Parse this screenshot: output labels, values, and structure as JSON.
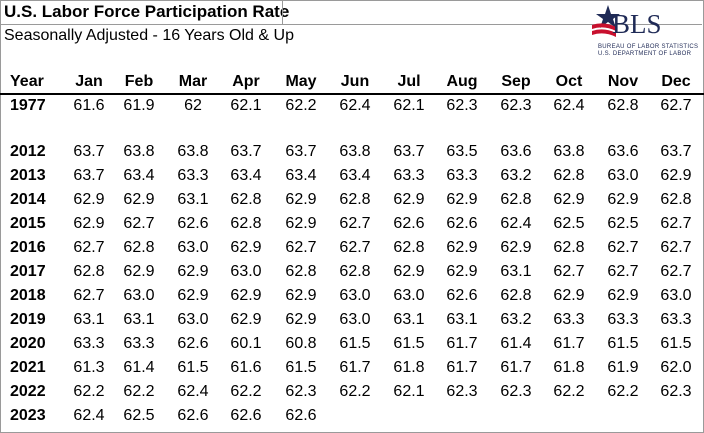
{
  "title": "U.S. Labor Force Participation Rate",
  "subtitle": "Seasonally Adjusted - 16 Years Old & Up",
  "logo": {
    "name": "BLS",
    "line1": "BUREAU OF LABOR STATISTICS",
    "line2": "U.S. DEPARTMENT OF LABOR",
    "colors": {
      "navy": "#1f2a56",
      "red": "#c8102e"
    }
  },
  "table": {
    "headers": [
      "Year",
      "Jan",
      "Feb",
      "Mar",
      "Apr",
      "May",
      "Jun",
      "Jul",
      "Aug",
      "Sep",
      "Oct",
      "Nov",
      "Dec"
    ],
    "rows": [
      {
        "year": "1977",
        "values": [
          "61.6",
          "61.9",
          "62",
          "62.1",
          "62.2",
          "62.4",
          "62.1",
          "62.3",
          "62.3",
          "62.4",
          "62.8",
          "62.7"
        ]
      },
      {
        "year": "2012",
        "values": [
          "63.7",
          "63.8",
          "63.8",
          "63.7",
          "63.7",
          "63.8",
          "63.7",
          "63.5",
          "63.6",
          "63.8",
          "63.6",
          "63.7"
        ]
      },
      {
        "year": "2013",
        "values": [
          "63.7",
          "63.4",
          "63.3",
          "63.4",
          "63.4",
          "63.4",
          "63.3",
          "63.3",
          "63.2",
          "62.8",
          "63.0",
          "62.9"
        ]
      },
      {
        "year": "2014",
        "values": [
          "62.9",
          "62.9",
          "63.1",
          "62.8",
          "62.9",
          "62.8",
          "62.9",
          "62.9",
          "62.8",
          "62.9",
          "62.9",
          "62.8"
        ]
      },
      {
        "year": "2015",
        "values": [
          "62.9",
          "62.7",
          "62.6",
          "62.8",
          "62.9",
          "62.7",
          "62.6",
          "62.6",
          "62.4",
          "62.5",
          "62.5",
          "62.7"
        ]
      },
      {
        "year": "2016",
        "values": [
          "62.7",
          "62.8",
          "63.0",
          "62.9",
          "62.7",
          "62.7",
          "62.8",
          "62.9",
          "62.9",
          "62.8",
          "62.7",
          "62.7"
        ]
      },
      {
        "year": "2017",
        "values": [
          "62.8",
          "62.9",
          "62.9",
          "63.0",
          "62.8",
          "62.8",
          "62.9",
          "62.9",
          "63.1",
          "62.7",
          "62.7",
          "62.7"
        ]
      },
      {
        "year": "2018",
        "values": [
          "62.7",
          "63.0",
          "62.9",
          "62.9",
          "62.9",
          "63.0",
          "63.0",
          "62.6",
          "62.8",
          "62.9",
          "62.9",
          "63.0"
        ]
      },
      {
        "year": "2019",
        "values": [
          "63.1",
          "63.1",
          "63.0",
          "62.9",
          "62.9",
          "63.0",
          "63.1",
          "63.1",
          "63.2",
          "63.3",
          "63.3",
          "63.3"
        ]
      },
      {
        "year": "2020",
        "values": [
          "63.3",
          "63.3",
          "62.6",
          "60.1",
          "60.8",
          "61.5",
          "61.5",
          "61.7",
          "61.4",
          "61.7",
          "61.5",
          "61.5"
        ]
      },
      {
        "year": "2021",
        "values": [
          "61.3",
          "61.4",
          "61.5",
          "61.6",
          "61.5",
          "61.7",
          "61.8",
          "61.7",
          "61.7",
          "61.8",
          "61.9",
          "62.0"
        ]
      },
      {
        "year": "2022",
        "values": [
          "62.2",
          "62.2",
          "62.4",
          "62.2",
          "62.3",
          "62.2",
          "62.1",
          "62.3",
          "62.3",
          "62.2",
          "62.2",
          "62.3"
        ]
      },
      {
        "year": "2023",
        "values": [
          "62.4",
          "62.5",
          "62.6",
          "62.6",
          "62.6",
          "",
          "",
          "",
          "",
          "",
          "",
          ""
        ]
      }
    ]
  }
}
